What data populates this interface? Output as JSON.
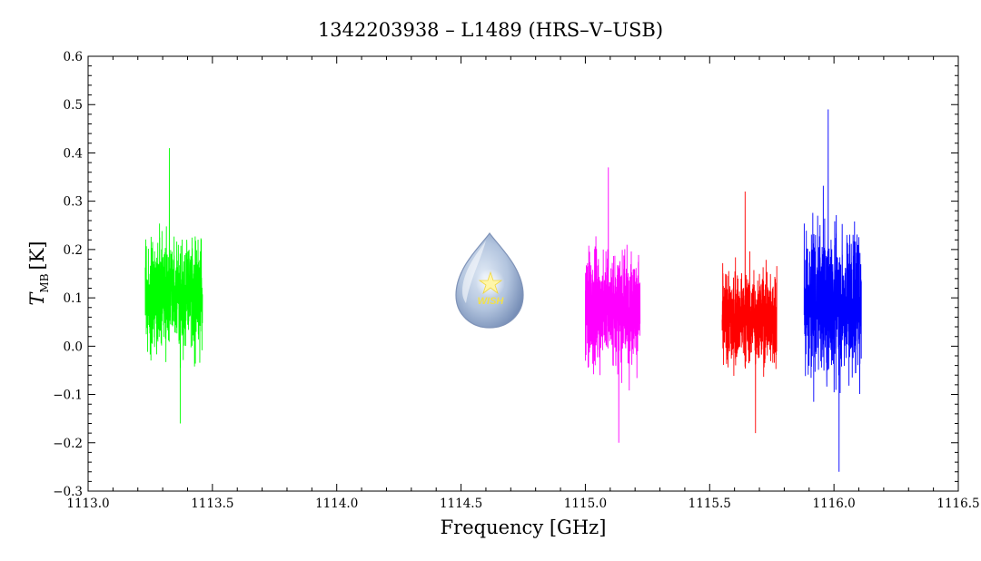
{
  "chart_data": {
    "type": "line",
    "title": "1342203938 – L1489 (HRS–V–USB)",
    "xlabel": "Frequency [GHz]",
    "ylabel_main": "T",
    "ylabel_sub": "MB",
    "ylabel_unit": "[K]",
    "xlim": [
      1113.0,
      1116.5
    ],
    "ylim": [
      -0.3,
      0.6
    ],
    "x_ticks": [
      "1113.0",
      "1113.5",
      "1114.0",
      "1114.5",
      "1115.0",
      "1115.5",
      "1116.0",
      "1116.5"
    ],
    "y_ticks": [
      "−0.3",
      "−0.2",
      "−0.1",
      "0.0",
      "0.1",
      "0.2",
      "0.3",
      "0.4",
      "0.5",
      "0.6"
    ],
    "grid": false,
    "logo_text": "WISH",
    "series": [
      {
        "color": "#00ff00",
        "x_range": [
          1113.23,
          1113.46
        ],
        "y_mean": 0.11,
        "y_min": -0.16,
        "y_max": 0.41
      },
      {
        "color": "#ff00ff",
        "x_range": [
          1115.0,
          1115.22
        ],
        "y_mean": 0.08,
        "y_min": -0.2,
        "y_max": 0.37
      },
      {
        "color": "#ff0000",
        "x_range": [
          1115.55,
          1115.77
        ],
        "y_mean": 0.06,
        "y_min": -0.18,
        "y_max": 0.32
      },
      {
        "color": "#0000ff",
        "x_range": [
          1115.88,
          1116.11
        ],
        "y_mean": 0.09,
        "y_min": -0.26,
        "y_max": 0.49
      }
    ]
  }
}
